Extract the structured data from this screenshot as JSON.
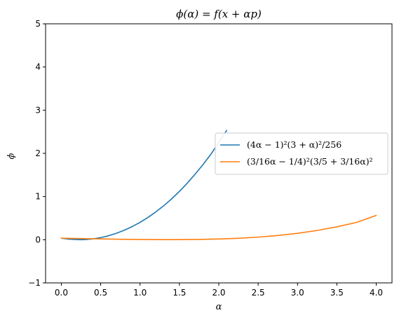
{
  "chart_data": {
    "type": "line",
    "title": "ϕ(α) = f(x + αp)",
    "xlabel": "α",
    "ylabel": "ϕ",
    "xlim": [
      -0.2,
      4.2
    ],
    "ylim": [
      -1,
      5
    ],
    "xticks": [
      0.0,
      0.5,
      1.0,
      1.5,
      2.0,
      2.5,
      3.0,
      3.5,
      4.0
    ],
    "xtick_labels": [
      "0.0",
      "0.5",
      "1.0",
      "1.5",
      "2.0",
      "2.5",
      "3.0",
      "3.5",
      "4.0"
    ],
    "yticks": [
      -1,
      0,
      1,
      2,
      3,
      4,
      5
    ],
    "ytick_labels": [
      "−1",
      "0",
      "1",
      "2",
      "3",
      "4",
      "5"
    ],
    "grid": false,
    "legend_position": "center-right",
    "series": [
      {
        "name": "(4α − 1)²(3 + α)²/256",
        "color": "#1f77b4",
        "x": [
          0.0,
          0.1,
          0.2,
          0.25,
          0.3,
          0.4,
          0.5,
          0.6,
          0.7,
          0.8,
          0.9,
          1.0,
          1.1,
          1.2,
          1.3,
          1.4,
          1.5,
          1.6,
          1.7,
          1.8,
          1.9,
          2.0,
          2.1
        ],
        "y": [
          0.035,
          0.013,
          0.002,
          0.0,
          0.002,
          0.018,
          0.048,
          0.092,
          0.149,
          0.22,
          0.304,
          0.402,
          0.515,
          0.643,
          0.785,
          0.944,
          1.12,
          1.31,
          1.52,
          1.74,
          1.98,
          2.25,
          2.53
        ]
      },
      {
        "name": "(3/16α − 1/4)²(3/5 + 3/16α)²",
        "color": "#ff7f0e",
        "x": [
          0.0,
          0.25,
          0.5,
          0.75,
          1.0,
          1.25,
          1.5,
          1.75,
          2.0,
          2.25,
          2.5,
          2.75,
          3.0,
          3.25,
          3.5,
          3.75,
          4.0
        ],
        "y": [
          0.035,
          0.027,
          0.019,
          0.011,
          0.005,
          0.002,
          0.002,
          0.006,
          0.016,
          0.033,
          0.06,
          0.097,
          0.148,
          0.214,
          0.298,
          0.401,
          0.562
        ]
      }
    ]
  }
}
